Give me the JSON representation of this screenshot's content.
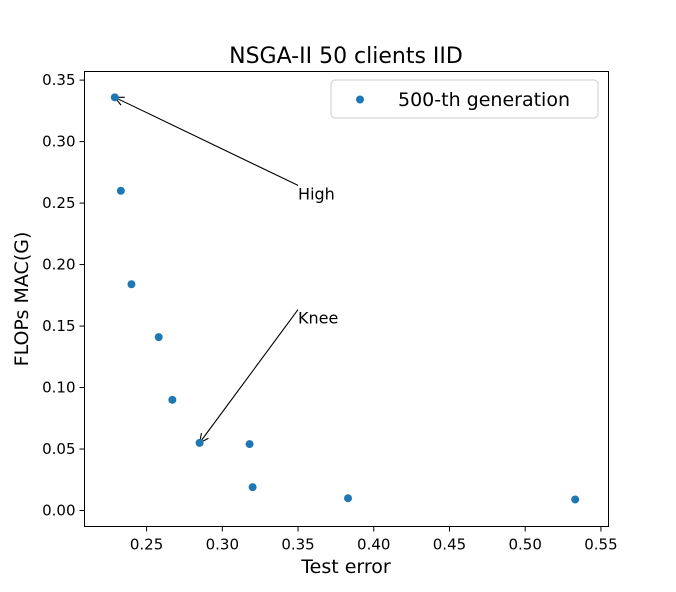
{
  "chart_data": {
    "type": "scatter",
    "title": "NSGA-II 50 clients IID",
    "xlabel": "Test error",
    "ylabel": "FLOPs MAC(G)",
    "xlim": [
      0.209,
      0.555
    ],
    "ylim": [
      -0.013,
      0.357
    ],
    "xticks": [
      "0.25",
      "0.30",
      "0.35",
      "0.40",
      "0.45",
      "0.50",
      "0.55"
    ],
    "yticks": [
      "0.00",
      "0.05",
      "0.10",
      "0.15",
      "0.20",
      "0.25",
      "0.30",
      "0.35"
    ],
    "grid": false,
    "legend_position": "top-right",
    "series": [
      {
        "name": "500-th generation",
        "color": "#1f77b4",
        "points": [
          {
            "x": 0.229,
            "y": 0.336
          },
          {
            "x": 0.233,
            "y": 0.26
          },
          {
            "x": 0.24,
            "y": 0.184
          },
          {
            "x": 0.258,
            "y": 0.141
          },
          {
            "x": 0.267,
            "y": 0.09
          },
          {
            "x": 0.285,
            "y": 0.055
          },
          {
            "x": 0.318,
            "y": 0.054
          },
          {
            "x": 0.32,
            "y": 0.019
          },
          {
            "x": 0.383,
            "y": 0.01
          },
          {
            "x": 0.533,
            "y": 0.009
          }
        ]
      }
    ],
    "annotations": [
      {
        "text": "High",
        "text_x": 0.35,
        "text_y": 0.253,
        "target_x": 0.229,
        "target_y": 0.336
      },
      {
        "text": "Knee",
        "text_x": 0.35,
        "text_y": 0.152,
        "target_x": 0.285,
        "target_y": 0.055
      }
    ]
  }
}
